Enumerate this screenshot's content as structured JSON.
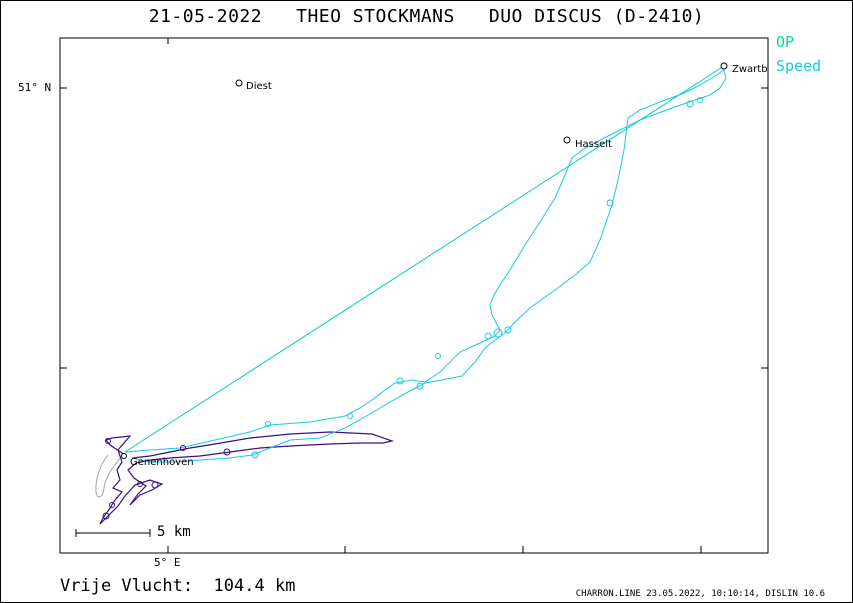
{
  "header": {
    "date": "21-05-2022",
    "pilot": "THEO STOCKMANS",
    "aircraft": "DUO DISCUS (D-2410)"
  },
  "legend": [
    {
      "label": "OP",
      "color": "#00e08a"
    },
    {
      "label": "Speed",
      "color": "#18c8e8"
    }
  ],
  "axes": {
    "lat_label": "51° N",
    "lon_label": "5° E"
  },
  "scale": {
    "label": "5 km"
  },
  "places": [
    {
      "name": "Diest"
    },
    {
      "name": "Hasselt"
    },
    {
      "name": "Zwartb"
    },
    {
      "name": "Genenhoven"
    }
  ],
  "summary": {
    "distance_label": "Vrije Vlucht:",
    "distance_value": "104.4 km"
  },
  "footer": {
    "text": "CHARRON.LINE 23.05.2022, 10:10:14, DISLIN 10.6"
  },
  "colors": {
    "track_cyan": "#18c8e8",
    "task_line": "#00d0c0",
    "track_purple": "#3a1080",
    "track_gray": "#a0a0a0"
  }
}
